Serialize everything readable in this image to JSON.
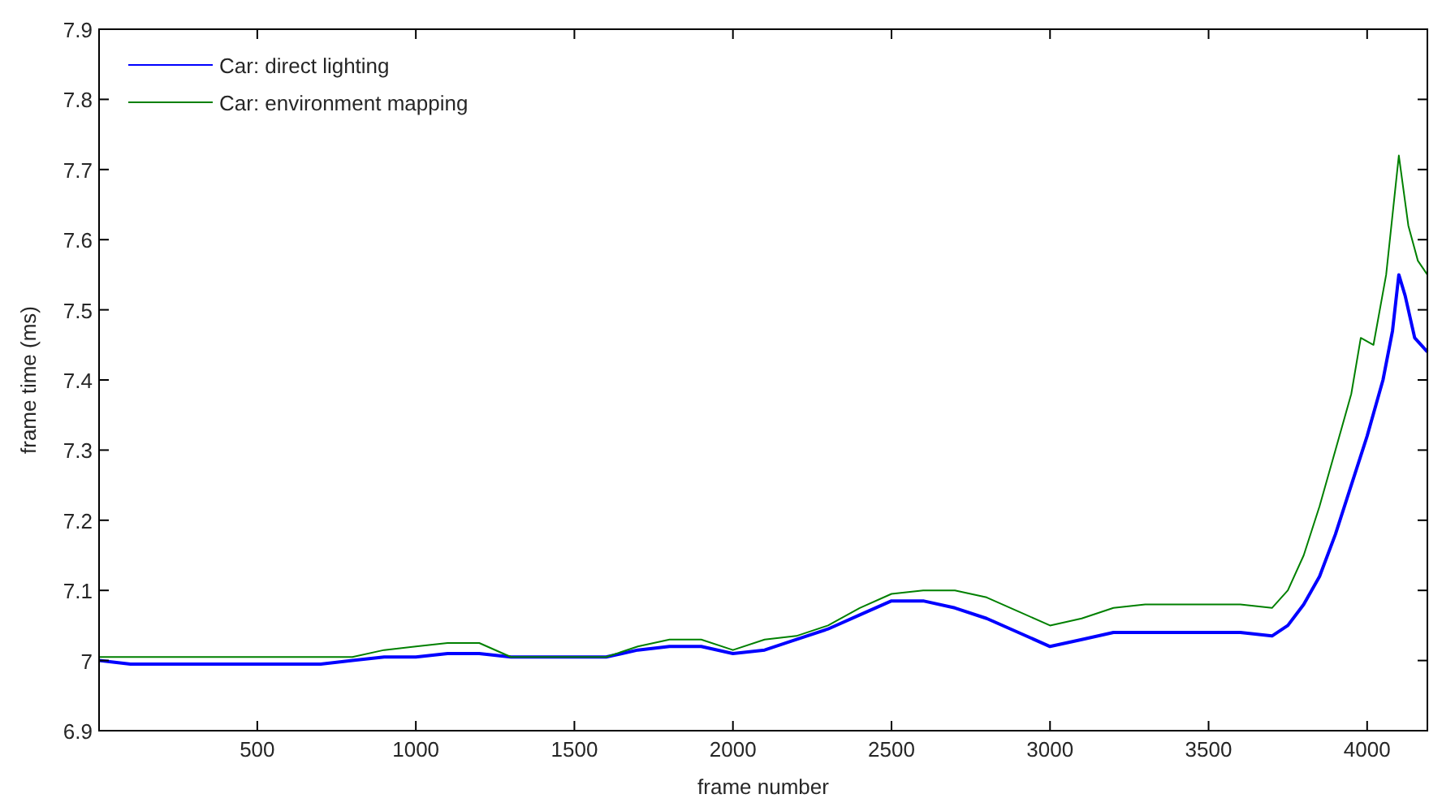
{
  "chart_data": {
    "type": "line",
    "xlabel": "frame number",
    "ylabel": "frame time (ms)",
    "xlim": [
      1,
      4190
    ],
    "ylim": [
      6.9,
      7.9
    ],
    "xticks": [
      500,
      1000,
      1500,
      2000,
      2500,
      3000,
      3500,
      4000
    ],
    "yticks": [
      6.9,
      7,
      7.1,
      7.2,
      7.3,
      7.4,
      7.5,
      7.6,
      7.7,
      7.8,
      7.9
    ],
    "legend": "top left",
    "line_style": "solid",
    "marker": "none",
    "grid": false,
    "series": [
      {
        "name": "Car: direct lighting",
        "color": "#0000ff",
        "x": [
          1,
          100,
          200,
          300,
          400,
          500,
          600,
          700,
          800,
          900,
          1000,
          1100,
          1200,
          1300,
          1400,
          1500,
          1600,
          1700,
          1800,
          1900,
          2000,
          2100,
          2200,
          2300,
          2400,
          2500,
          2600,
          2700,
          2800,
          2900,
          3000,
          3100,
          3200,
          3300,
          3400,
          3500,
          3600,
          3700,
          3750,
          3800,
          3850,
          3900,
          3950,
          4000,
          4050,
          4080,
          4100,
          4120,
          4150,
          4190
        ],
        "values": [
          7.0,
          6.995,
          6.995,
          6.995,
          6.995,
          6.995,
          6.995,
          6.995,
          7.0,
          7.005,
          7.005,
          7.01,
          7.01,
          7.005,
          7.005,
          7.005,
          7.005,
          7.015,
          7.02,
          7.02,
          7.01,
          7.015,
          7.03,
          7.045,
          7.065,
          7.085,
          7.085,
          7.075,
          7.06,
          7.04,
          7.02,
          7.03,
          7.04,
          7.04,
          7.04,
          7.04,
          7.04,
          7.035,
          7.05,
          7.08,
          7.12,
          7.18,
          7.25,
          7.32,
          7.4,
          7.47,
          7.55,
          7.52,
          7.46,
          7.44
        ]
      },
      {
        "name": "Car: environment mapping",
        "color": "#008000",
        "x": [
          1,
          100,
          200,
          300,
          400,
          500,
          600,
          700,
          800,
          900,
          1000,
          1100,
          1200,
          1300,
          1400,
          1500,
          1600,
          1700,
          1800,
          1900,
          2000,
          2100,
          2200,
          2300,
          2400,
          2500,
          2600,
          2700,
          2800,
          2900,
          3000,
          3100,
          3200,
          3300,
          3400,
          3500,
          3600,
          3700,
          3750,
          3800,
          3850,
          3900,
          3950,
          3980,
          4020,
          4060,
          4100,
          4130,
          4160,
          4190
        ],
        "values": [
          7.005,
          7.005,
          7.005,
          7.005,
          7.005,
          7.005,
          7.005,
          7.005,
          7.005,
          7.015,
          7.02,
          7.025,
          7.025,
          7.005,
          7.005,
          7.005,
          7.005,
          7.02,
          7.03,
          7.03,
          7.015,
          7.03,
          7.035,
          7.05,
          7.075,
          7.095,
          7.1,
          7.1,
          7.09,
          7.07,
          7.05,
          7.06,
          7.075,
          7.08,
          7.08,
          7.08,
          7.08,
          7.075,
          7.1,
          7.15,
          7.22,
          7.3,
          7.38,
          7.46,
          7.45,
          7.55,
          7.72,
          7.62,
          7.57,
          7.55
        ]
      }
    ]
  }
}
